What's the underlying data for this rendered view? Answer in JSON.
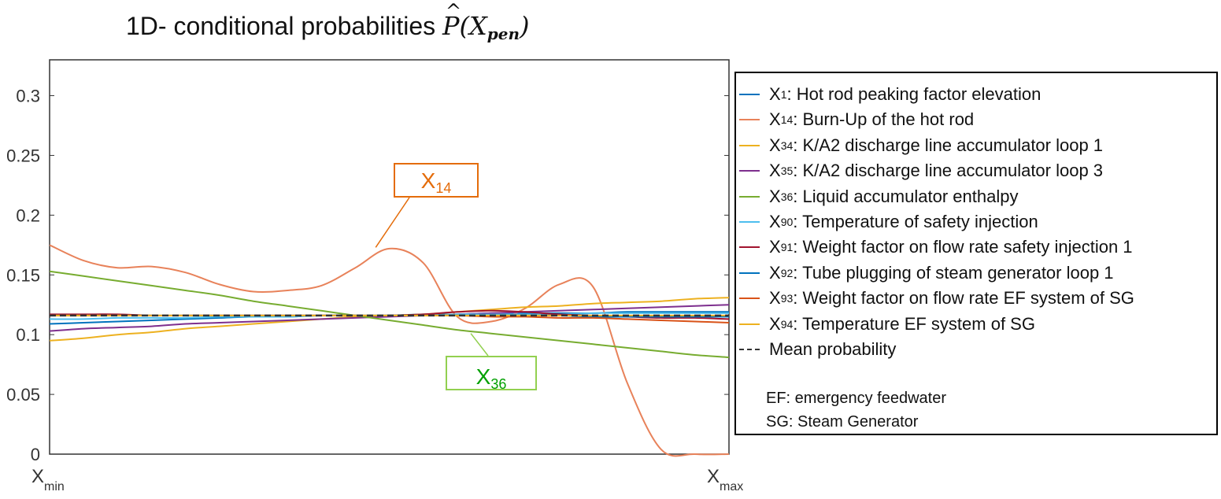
{
  "title": {
    "prefix": "1D- conditional probabilities ",
    "symbol": "P",
    "open": "(",
    "var": "X",
    "sub": "pen",
    "close": ")"
  },
  "chart_data": {
    "type": "line",
    "title": "1D- conditional probabilities P̂(X_pen)",
    "xlabel": "",
    "ylabel": "",
    "xlim": [
      0,
      1
    ],
    "ylim": [
      0,
      0.33
    ],
    "x_tick_labels": {
      "min_main": "X",
      "min_sub": "min",
      "max_main": "X",
      "max_sub": "max"
    },
    "y_ticks": [
      0,
      0.05,
      0.1,
      0.15,
      0.2,
      0.25,
      0.3
    ],
    "y_tick_labels": [
      "0",
      "0.05",
      "0.1",
      "0.15",
      "0.2",
      "0.25",
      "0.3"
    ],
    "x": [
      0,
      0.05,
      0.1,
      0.15,
      0.2,
      0.25,
      0.3,
      0.35,
      0.4,
      0.45,
      0.5,
      0.55,
      0.6,
      0.65,
      0.7,
      0.75,
      0.8,
      0.85,
      0.9,
      0.95,
      1.0
    ],
    "series": [
      {
        "key": "X1",
        "main": "X",
        "sub": "1",
        "desc": ": Hot rod peaking factor elevation",
        "color": "#0072bd",
        "dashed": false,
        "values": [
          0.109,
          0.11,
          0.111,
          0.112,
          0.113,
          0.114,
          0.115,
          0.115,
          0.116,
          0.116,
          0.116,
          0.117,
          0.117,
          0.118,
          0.118,
          0.118,
          0.118,
          0.119,
          0.119,
          0.119,
          0.119
        ]
      },
      {
        "key": "X14",
        "main": "X",
        "sub": "14",
        "desc": ": Burn-Up of the hot rod",
        "color": "#e8825a",
        "dashed": false,
        "values": [
          0.175,
          0.162,
          0.156,
          0.157,
          0.152,
          0.142,
          0.136,
          0.137,
          0.141,
          0.156,
          0.172,
          0.16,
          0.115,
          0.111,
          0.122,
          0.142,
          0.14,
          0.06,
          0.004,
          0.0,
          0.0
        ]
      },
      {
        "key": "X34",
        "main": "X",
        "sub": "34",
        "desc": ": K/A2 discharge line accumulator loop 1",
        "color": "#edb120",
        "dashed": false,
        "values": [
          0.095,
          0.097,
          0.1,
          0.102,
          0.105,
          0.107,
          0.109,
          0.111,
          0.113,
          0.115,
          0.116,
          0.117,
          0.119,
          0.121,
          0.123,
          0.124,
          0.126,
          0.127,
          0.128,
          0.13,
          0.131
        ]
      },
      {
        "key": "X35",
        "main": "X",
        "sub": "35",
        "desc": ": K/A2 discharge line accumulator loop 3",
        "color": "#7e2f8e",
        "dashed": false,
        "values": [
          0.103,
          0.105,
          0.106,
          0.107,
          0.109,
          0.11,
          0.111,
          0.112,
          0.113,
          0.114,
          0.115,
          0.116,
          0.117,
          0.118,
          0.119,
          0.12,
          0.121,
          0.122,
          0.123,
          0.124,
          0.125
        ]
      },
      {
        "key": "X36",
        "main": "X",
        "sub": "36",
        "desc": ": Liquid accumulator enthalpy",
        "color": "#77ac30",
        "dashed": false,
        "values": [
          0.153,
          0.149,
          0.145,
          0.141,
          0.137,
          0.133,
          0.128,
          0.124,
          0.12,
          0.116,
          0.112,
          0.108,
          0.104,
          0.101,
          0.098,
          0.095,
          0.092,
          0.089,
          0.086,
          0.083,
          0.081
        ]
      },
      {
        "key": "X90",
        "main": "X",
        "sub": "90",
        "desc": ": Temperature of safety injection",
        "color": "#4dbeee",
        "dashed": false,
        "values": [
          0.113,
          0.113,
          0.114,
          0.114,
          0.114,
          0.115,
          0.115,
          0.115,
          0.116,
          0.116,
          0.116,
          0.116,
          0.117,
          0.117,
          0.117,
          0.117,
          0.118,
          0.118,
          0.118,
          0.118,
          0.118
        ]
      },
      {
        "key": "X91",
        "main": "X",
        "sub": "91",
        "desc": ": Weight factor on flow rate safety injection  1",
        "color": "#a2142f",
        "dashed": false,
        "values": [
          0.117,
          0.117,
          0.117,
          0.116,
          0.116,
          0.116,
          0.116,
          0.116,
          0.116,
          0.116,
          0.116,
          0.117,
          0.119,
          0.12,
          0.119,
          0.117,
          0.116,
          0.115,
          0.114,
          0.114,
          0.113
        ]
      },
      {
        "key": "X92",
        "main": "X",
        "sub": "92",
        "desc": ": Tube plugging of steam generator loop 1",
        "color": "#0072bd",
        "dashed": false,
        "values": [
          0.116,
          0.116,
          0.116,
          0.116,
          0.116,
          0.116,
          0.116,
          0.116,
          0.116,
          0.116,
          0.116,
          0.116,
          0.116,
          0.116,
          0.116,
          0.116,
          0.115,
          0.115,
          0.115,
          0.115,
          0.115
        ]
      },
      {
        "key": "X93",
        "main": "X",
        "sub": "93",
        "desc": ": Weight factor on flow rate EF system of SG",
        "color": "#d95319",
        "dashed": false,
        "values": [
          0.116,
          0.116,
          0.116,
          0.116,
          0.116,
          0.116,
          0.116,
          0.116,
          0.116,
          0.116,
          0.116,
          0.116,
          0.116,
          0.115,
          0.115,
          0.114,
          0.114,
          0.113,
          0.112,
          0.111,
          0.11
        ]
      },
      {
        "key": "X94",
        "main": "X",
        "sub": "94",
        "desc": ": Temperature EF system of SG",
        "color": "#edb120",
        "dashed": false,
        "values": [
          0.116,
          0.116,
          0.116,
          0.116,
          0.116,
          0.116,
          0.116,
          0.116,
          0.116,
          0.116,
          0.116,
          0.116,
          0.116,
          0.116,
          0.116,
          0.116,
          0.116,
          0.116,
          0.116,
          0.116,
          0.116
        ]
      },
      {
        "key": "mean",
        "main": "Mean probability",
        "sub": "",
        "desc": "",
        "color": "#333333",
        "dashed": true,
        "values": [
          0.116,
          0.116,
          0.116,
          0.116,
          0.116,
          0.116,
          0.116,
          0.116,
          0.116,
          0.116,
          0.116,
          0.116,
          0.116,
          0.116,
          0.116,
          0.116,
          0.116,
          0.116,
          0.116,
          0.116,
          0.116
        ]
      }
    ],
    "annotations": [
      {
        "target": "X14",
        "main": "X",
        "sub": "14",
        "color": "#e46c0a",
        "anchor_x": 0.48,
        "anchor_y": 0.173
      },
      {
        "target": "X36",
        "main": "X",
        "sub": "36",
        "color": "#92d050",
        "anchor_x": 0.62,
        "anchor_y": 0.101
      }
    ]
  },
  "legend_notes": [
    "EF: emergency feedwater",
    "SG: Steam Generator"
  ]
}
